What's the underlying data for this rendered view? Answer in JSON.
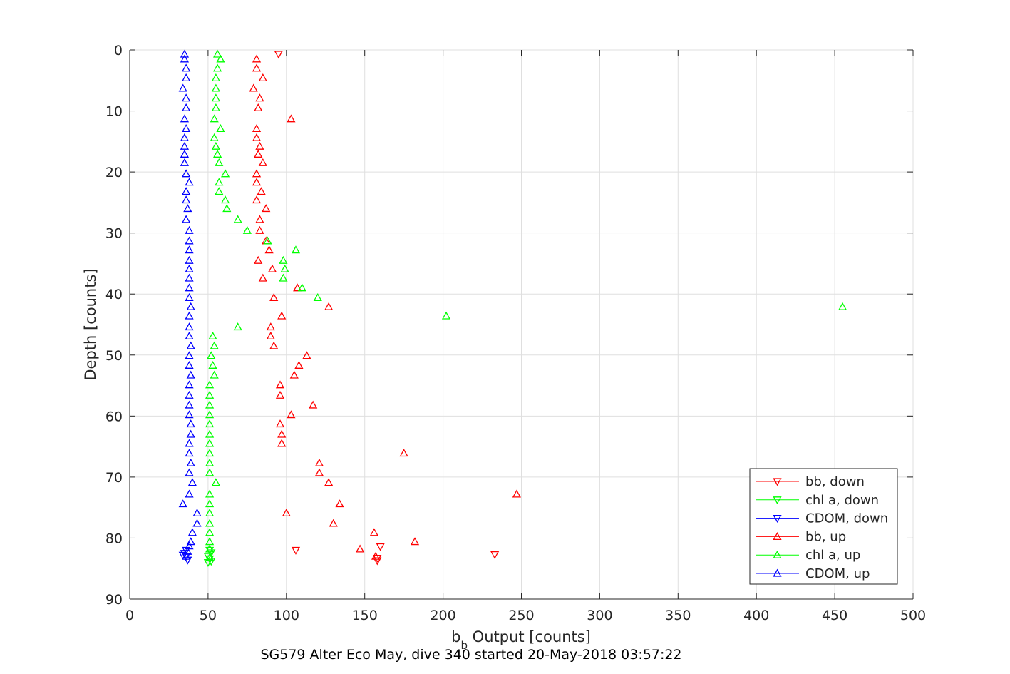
{
  "chart_data": {
    "type": "scatter",
    "title": "SG579 Alter Eco May, dive 340 started 20-May-2018 03:57:22",
    "xlabel": {
      "main": "b",
      "sub": "b",
      "rest": " Output [counts]"
    },
    "ylabel": "Depth [counts]",
    "xlim": [
      0,
      500
    ],
    "ylim": [
      0,
      90
    ],
    "y_reversed": true,
    "grid": true,
    "x_ticks": [
      "0",
      "50",
      "100",
      "150",
      "200",
      "250",
      "300",
      "350",
      "400",
      "450",
      "500"
    ],
    "y_ticks": [
      "0",
      "10",
      "20",
      "30",
      "40",
      "50",
      "60",
      "70",
      "80",
      "90"
    ],
    "legend_position": "bottom-right",
    "colors": {
      "bb": "#ff0000",
      "chl": "#00ff00",
      "cdom": "#0000ff",
      "axis": "#262626",
      "grid": "#dfdfdf"
    },
    "series": [
      {
        "name": "bb, down",
        "marker": "triangle-down",
        "color": "#ff0000",
        "points": [
          [
            95,
            0.7
          ],
          [
            106,
            82
          ],
          [
            158,
            83.3
          ],
          [
            158,
            83.7
          ],
          [
            233,
            82.7
          ],
          [
            160,
            81.4
          ]
        ]
      },
      {
        "name": "chl a, down",
        "marker": "triangle-down",
        "color": "#00ff00",
        "points": [
          [
            51,
            82
          ],
          [
            52,
            82.4
          ],
          [
            50,
            83
          ],
          [
            51,
            83.4
          ],
          [
            52,
            83.8
          ],
          [
            50,
            84
          ]
        ]
      },
      {
        "name": "CDOM, down",
        "marker": "triangle-down",
        "color": "#0000ff",
        "points": [
          [
            35,
            82.5
          ],
          [
            36,
            83
          ],
          [
            37,
            83.6
          ],
          [
            34,
            82.8
          ],
          [
            36,
            82
          ]
        ]
      },
      {
        "name": "bb, up",
        "marker": "triangle-up",
        "color": "#ff0000",
        "points": [
          [
            81,
            1.5
          ],
          [
            81,
            3
          ],
          [
            85,
            4.6
          ],
          [
            79,
            6.3
          ],
          [
            83,
            7.9
          ],
          [
            82,
            9.5
          ],
          [
            103,
            11.3
          ],
          [
            81,
            12.9
          ],
          [
            81,
            14.4
          ],
          [
            83,
            15.8
          ],
          [
            82,
            17.1
          ],
          [
            85,
            18.5
          ],
          [
            81,
            20.3
          ],
          [
            81,
            21.7
          ],
          [
            84,
            23.2
          ],
          [
            81,
            24.6
          ],
          [
            87,
            26
          ],
          [
            83,
            27.8
          ],
          [
            83,
            29.6
          ],
          [
            87,
            31.3
          ],
          [
            89,
            32.8
          ],
          [
            82,
            34.5
          ],
          [
            91,
            35.9
          ],
          [
            85,
            37.4
          ],
          [
            107,
            39
          ],
          [
            92,
            40.6
          ],
          [
            127,
            42.1
          ],
          [
            97,
            43.6
          ],
          [
            90,
            45.4
          ],
          [
            90,
            46.9
          ],
          [
            92,
            48.5
          ],
          [
            113,
            50.1
          ],
          [
            108,
            51.7
          ],
          [
            105,
            53.3
          ],
          [
            96,
            54.9
          ],
          [
            96,
            56.6
          ],
          [
            117,
            58.2
          ],
          [
            103,
            59.8
          ],
          [
            96,
            61.3
          ],
          [
            97,
            63
          ],
          [
            97,
            64.5
          ],
          [
            175,
            66.1
          ],
          [
            121,
            67.7
          ],
          [
            121,
            69.3
          ],
          [
            127,
            70.9
          ],
          [
            247,
            72.8
          ],
          [
            134,
            74.4
          ],
          [
            100,
            75.9
          ],
          [
            130,
            77.6
          ],
          [
            156,
            79.1
          ],
          [
            182,
            80.6
          ],
          [
            147,
            81.8
          ],
          [
            157,
            83
          ]
        ]
      },
      {
        "name": "chl a, up",
        "marker": "triangle-up",
        "color": "#00ff00",
        "points": [
          [
            56,
            0.7
          ],
          [
            58,
            1.5
          ],
          [
            56,
            3
          ],
          [
            55,
            4.6
          ],
          [
            55,
            6.3
          ],
          [
            55,
            7.9
          ],
          [
            55,
            9.5
          ],
          [
            54,
            11.3
          ],
          [
            58,
            12.9
          ],
          [
            54,
            14.4
          ],
          [
            55,
            15.8
          ],
          [
            56,
            17.1
          ],
          [
            57,
            18.5
          ],
          [
            61,
            20.3
          ],
          [
            57,
            21.7
          ],
          [
            57,
            23.2
          ],
          [
            61,
            24.6
          ],
          [
            62,
            26
          ],
          [
            69,
            27.8
          ],
          [
            75,
            29.6
          ],
          [
            88,
            31.3
          ],
          [
            106,
            32.8
          ],
          [
            98,
            34.5
          ],
          [
            99,
            35.9
          ],
          [
            98,
            37.4
          ],
          [
            110,
            39
          ],
          [
            120,
            40.6
          ],
          [
            455,
            42.1
          ],
          [
            202,
            43.6
          ],
          [
            69,
            45.4
          ],
          [
            53,
            46.9
          ],
          [
            54,
            48.5
          ],
          [
            52,
            50.1
          ],
          [
            53,
            51.7
          ],
          [
            54,
            53.3
          ],
          [
            51,
            54.9
          ],
          [
            51,
            56.6
          ],
          [
            51,
            58.2
          ],
          [
            51,
            59.8
          ],
          [
            51,
            61.3
          ],
          [
            51,
            63
          ],
          [
            51,
            64.5
          ],
          [
            51,
            66.1
          ],
          [
            51,
            67.7
          ],
          [
            51,
            69.3
          ],
          [
            55,
            70.9
          ],
          [
            51,
            72.8
          ],
          [
            51,
            74.4
          ],
          [
            51,
            75.9
          ],
          [
            51,
            77.6
          ],
          [
            51,
            79.1
          ],
          [
            51,
            80.6
          ],
          [
            51,
            81.8
          ],
          [
            51,
            83.2
          ]
        ]
      },
      {
        "name": "CDOM, up",
        "marker": "triangle-up",
        "color": "#0000ff",
        "points": [
          [
            35,
            0.7
          ],
          [
            35,
            1.5
          ],
          [
            36,
            3
          ],
          [
            36,
            4.6
          ],
          [
            34,
            6.3
          ],
          [
            36,
            7.9
          ],
          [
            36,
            9.5
          ],
          [
            35,
            11.3
          ],
          [
            36,
            12.9
          ],
          [
            35,
            14.4
          ],
          [
            35,
            15.8
          ],
          [
            35,
            17.1
          ],
          [
            35,
            18.5
          ],
          [
            36,
            20.3
          ],
          [
            38,
            21.7
          ],
          [
            36,
            23.2
          ],
          [
            36,
            24.6
          ],
          [
            37,
            26
          ],
          [
            36,
            27.8
          ],
          [
            38,
            29.6
          ],
          [
            38,
            31.3
          ],
          [
            38,
            32.8
          ],
          [
            38,
            34.5
          ],
          [
            38,
            35.9
          ],
          [
            38,
            37.4
          ],
          [
            38,
            39
          ],
          [
            38,
            40.6
          ],
          [
            39,
            42.1
          ],
          [
            38,
            43.6
          ],
          [
            38,
            45.4
          ],
          [
            38,
            46.9
          ],
          [
            39,
            48.5
          ],
          [
            38,
            50.1
          ],
          [
            38,
            51.7
          ],
          [
            39,
            53.3
          ],
          [
            38,
            54.9
          ],
          [
            38,
            56.6
          ],
          [
            38,
            58.2
          ],
          [
            38,
            59.8
          ],
          [
            39,
            61.3
          ],
          [
            39,
            63
          ],
          [
            38,
            64.5
          ],
          [
            38,
            66.1
          ],
          [
            39,
            67.7
          ],
          [
            38,
            69.3
          ],
          [
            40,
            70.9
          ],
          [
            38,
            72.8
          ],
          [
            34,
            74.4
          ],
          [
            43,
            75.9
          ],
          [
            43,
            77.6
          ],
          [
            40,
            79.1
          ],
          [
            39,
            80.6
          ],
          [
            38,
            81.3
          ],
          [
            37,
            82.2
          ],
          [
            36,
            83
          ]
        ]
      }
    ]
  }
}
